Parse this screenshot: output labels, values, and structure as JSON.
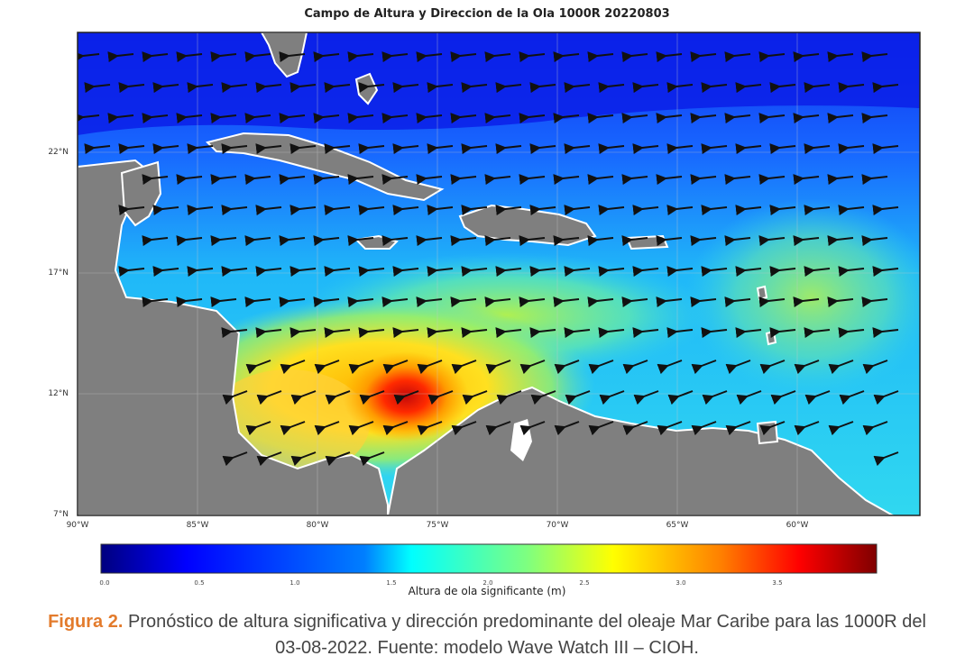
{
  "map": {
    "title": "Campo de Altura y Direccion de la Ola 1000R 20220803",
    "lat_ticks": [
      "22°N",
      "17°N",
      "12°N",
      "7°N"
    ],
    "lon_ticks": [
      "90°W",
      "85°W",
      "80°W",
      "75°W",
      "70°W",
      "65°W",
      "60°W"
    ],
    "wave_direction": "east-to-west (arrows pointing west, west-southwest in the south-west Caribbean)"
  },
  "colorbar": {
    "ticks": [
      "0.0",
      "0.5",
      "1.0",
      "1.5",
      "2.0",
      "2.5",
      "3.0",
      "3.5"
    ],
    "label": "Altura de ola significante (m)",
    "colors": [
      "#00007f",
      "#0000ff",
      "#007fff",
      "#00ffff",
      "#7fff7f",
      "#ffff00",
      "#ff7f00",
      "#ff0000",
      "#7f0000"
    ]
  },
  "caption": {
    "label": "Figura 2.",
    "text": "Pronóstico de altura significativa y dirección predominante del oleaje Mar Caribe para las 1000R del 03-08-2022. Fuente: modelo Wave Watch III – CIOH."
  },
  "colors": {
    "land": "#7f7f7f",
    "caption_label": "#e37b2c"
  }
}
